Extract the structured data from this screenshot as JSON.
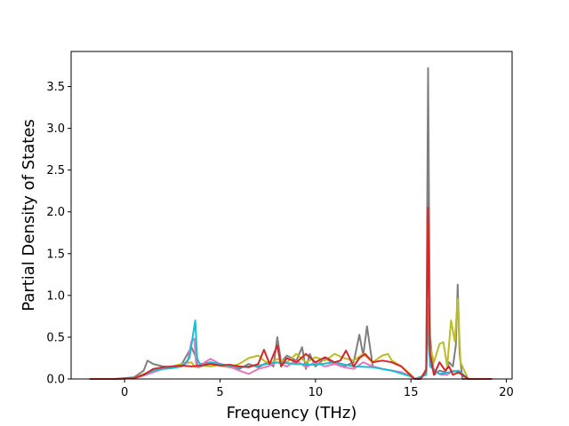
{
  "chart_data": {
    "type": "line",
    "title": "",
    "xlabel": "Frequency (THz)",
    "ylabel": "Partial Density of States",
    "xlim": [
      -2.8,
      20.3
    ],
    "ylim": [
      0.0,
      3.92
    ],
    "x_ticks": [
      0,
      5,
      10,
      15,
      20
    ],
    "y_ticks": [
      0.0,
      0.5,
      1.0,
      1.5,
      2.0,
      2.5,
      3.0,
      3.5
    ],
    "x_tick_labels": [
      "0",
      "5",
      "10",
      "15",
      "20"
    ],
    "y_tick_labels": [
      "0.0",
      "0.5",
      "1.0",
      "1.5",
      "2.0",
      "2.5",
      "3.0",
      "3.5"
    ],
    "grid": false,
    "legend": "none",
    "series": [
      {
        "color": "#7f7f7f",
        "x": [
          -1.8,
          -0.5,
          0.5,
          1.0,
          1.2,
          1.5,
          2.0,
          2.5,
          3.0,
          3.3,
          3.5,
          3.7,
          3.85,
          4.0,
          4.5,
          5.0,
          5.5,
          6.0,
          6.5,
          7.0,
          7.5,
          7.8,
          8.0,
          8.2,
          8.5,
          9.0,
          9.3,
          9.5,
          9.7,
          10.0,
          10.5,
          11.0,
          11.5,
          12.0,
          12.3,
          12.5,
          12.7,
          13.0,
          13.5,
          14.0,
          14.5,
          14.9,
          15.2,
          15.5,
          15.8,
          15.9,
          15.95,
          16.0,
          16.2,
          16.5,
          16.8,
          17.0,
          17.2,
          17.35,
          17.45,
          17.55,
          17.7,
          18.0,
          19.2
        ],
        "y": [
          0.0,
          0.0,
          0.02,
          0.1,
          0.22,
          0.18,
          0.15,
          0.14,
          0.18,
          0.3,
          0.38,
          0.28,
          0.14,
          0.18,
          0.2,
          0.16,
          0.14,
          0.12,
          0.18,
          0.14,
          0.2,
          0.15,
          0.5,
          0.2,
          0.28,
          0.22,
          0.38,
          0.12,
          0.3,
          0.15,
          0.25,
          0.18,
          0.15,
          0.2,
          0.53,
          0.28,
          0.63,
          0.15,
          0.12,
          0.1,
          0.08,
          0.04,
          0.0,
          0.0,
          0.12,
          3.72,
          2.0,
          0.5,
          0.05,
          0.1,
          0.08,
          0.2,
          0.15,
          0.4,
          1.13,
          0.3,
          0.0,
          0.0,
          0.0
        ]
      },
      {
        "color": "#bcbd22",
        "x": [
          -1.8,
          -0.5,
          0.5,
          1.0,
          1.5,
          2.0,
          2.5,
          3.0,
          3.5,
          3.7,
          4.0,
          4.5,
          5.0,
          5.5,
          6.0,
          6.5,
          7.0,
          7.3,
          7.6,
          8.0,
          8.5,
          9.0,
          9.5,
          10.0,
          10.5,
          11.0,
          11.5,
          12.0,
          12.5,
          13.0,
          13.5,
          13.8,
          14.0,
          14.5,
          15.0,
          15.2,
          15.5,
          15.8,
          15.9,
          16.0,
          16.2,
          16.5,
          16.7,
          16.9,
          17.1,
          17.3,
          17.45,
          17.6,
          18.0,
          19.2
        ],
        "y": [
          0.0,
          0.0,
          0.01,
          0.06,
          0.1,
          0.12,
          0.15,
          0.18,
          0.2,
          0.14,
          0.16,
          0.15,
          0.17,
          0.14,
          0.18,
          0.25,
          0.28,
          0.22,
          0.18,
          0.24,
          0.2,
          0.3,
          0.2,
          0.26,
          0.22,
          0.3,
          0.25,
          0.22,
          0.3,
          0.2,
          0.28,
          0.3,
          0.22,
          0.15,
          0.05,
          0.0,
          0.0,
          0.1,
          1.9,
          0.4,
          0.2,
          0.42,
          0.44,
          0.15,
          0.7,
          0.45,
          0.96,
          0.2,
          0.0,
          0.0
        ]
      },
      {
        "color": "#e377c2",
        "x": [
          -1.8,
          -0.5,
          0.5,
          1.0,
          1.5,
          2.0,
          2.5,
          3.0,
          3.3,
          3.5,
          3.65,
          3.75,
          3.9,
          4.2,
          4.5,
          5.0,
          5.5,
          6.0,
          6.5,
          7.0,
          7.5,
          8.0,
          8.5,
          9.0,
          9.5,
          10.0,
          10.5,
          11.0,
          11.5,
          12.0,
          12.5,
          13.0,
          13.5,
          14.0,
          14.5,
          15.0,
          15.2,
          15.5,
          15.8,
          15.9,
          16.0,
          16.3,
          16.6,
          16.9,
          17.2,
          17.5,
          18.0,
          19.2
        ],
        "y": [
          0.0,
          0.0,
          0.01,
          0.04,
          0.08,
          0.12,
          0.14,
          0.15,
          0.2,
          0.45,
          0.48,
          0.18,
          0.14,
          0.2,
          0.24,
          0.18,
          0.15,
          0.1,
          0.06,
          0.12,
          0.15,
          0.2,
          0.15,
          0.22,
          0.14,
          0.2,
          0.15,
          0.18,
          0.14,
          0.12,
          0.2,
          0.15,
          0.12,
          0.1,
          0.08,
          0.03,
          0.0,
          0.0,
          0.08,
          0.9,
          0.2,
          0.08,
          0.05,
          0.05,
          0.1,
          0.08,
          0.0,
          0.0
        ]
      },
      {
        "color": "#17becf",
        "x": [
          -1.8,
          -0.5,
          0.5,
          1.0,
          1.5,
          2.0,
          2.5,
          3.0,
          3.4,
          3.6,
          3.7,
          3.8,
          4.0,
          4.5,
          5.0,
          6.0,
          7.0,
          8.0,
          9.0,
          10.0,
          11.0,
          12.0,
          13.0,
          14.0,
          15.0,
          15.2,
          15.8,
          15.9,
          16.0,
          16.5,
          17.0,
          17.5,
          18.0,
          19.2
        ],
        "y": [
          0.0,
          0.0,
          0.01,
          0.05,
          0.1,
          0.12,
          0.13,
          0.15,
          0.25,
          0.55,
          0.7,
          0.25,
          0.15,
          0.2,
          0.18,
          0.14,
          0.16,
          0.2,
          0.18,
          0.17,
          0.2,
          0.15,
          0.14,
          0.1,
          0.03,
          0.0,
          0.05,
          0.7,
          0.15,
          0.06,
          0.08,
          0.1,
          0.0,
          0.0
        ]
      },
      {
        "color": "#d62728",
        "x": [
          -1.8,
          -0.5,
          0.5,
          1.0,
          1.5,
          2.0,
          2.5,
          3.0,
          3.5,
          4.0,
          4.5,
          5.0,
          5.5,
          6.0,
          6.5,
          7.0,
          7.3,
          7.6,
          8.0,
          8.2,
          8.5,
          9.0,
          9.5,
          10.0,
          10.5,
          11.0,
          11.3,
          11.6,
          12.0,
          12.3,
          12.6,
          13.0,
          13.5,
          14.0,
          14.5,
          14.9,
          15.2,
          15.5,
          15.8,
          15.9,
          15.95,
          16.0,
          16.2,
          16.5,
          16.8,
          17.0,
          17.2,
          17.5,
          18.0,
          19.2
        ],
        "y": [
          0.0,
          0.0,
          0.01,
          0.05,
          0.12,
          0.14,
          0.15,
          0.16,
          0.15,
          0.16,
          0.18,
          0.16,
          0.17,
          0.15,
          0.14,
          0.18,
          0.35,
          0.18,
          0.4,
          0.15,
          0.25,
          0.2,
          0.3,
          0.2,
          0.26,
          0.2,
          0.22,
          0.34,
          0.15,
          0.25,
          0.3,
          0.2,
          0.22,
          0.2,
          0.15,
          0.06,
          0.0,
          0.0,
          0.1,
          2.05,
          1.0,
          0.3,
          0.05,
          0.2,
          0.1,
          0.15,
          0.05,
          0.08,
          0.0,
          0.0
        ]
      }
    ]
  }
}
